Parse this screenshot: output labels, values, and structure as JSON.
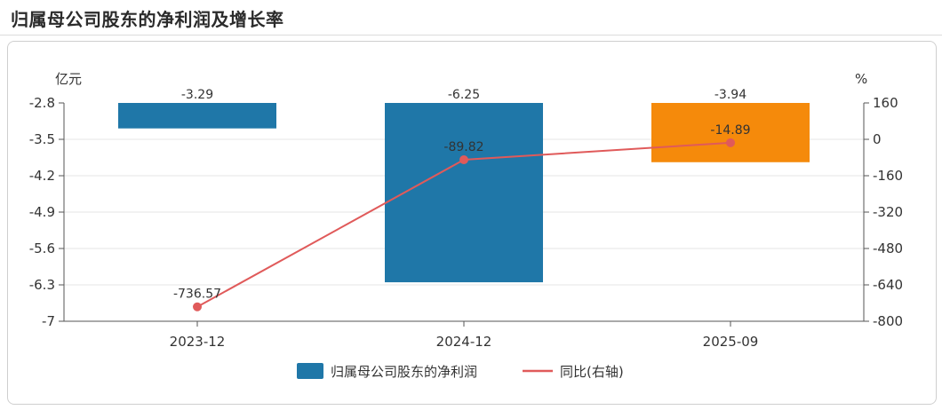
{
  "header": {
    "title": "归属母公司股东的净利润及增长率"
  },
  "chart_data": {
    "type": "bar",
    "categories": [
      "2023-12",
      "2024-12",
      "2025-09"
    ],
    "series": [
      {
        "name": "归属母公司股东的净利润",
        "type": "bar",
        "axis": "left",
        "values": [
          -3.29,
          -6.25,
          -3.94
        ],
        "labels": [
          "-3.29",
          "-6.25",
          "-3.94"
        ],
        "colors": [
          "#1f77a8",
          "#1f77a8",
          "#f58a0b"
        ]
      },
      {
        "name": "同比(右轴)",
        "type": "line",
        "axis": "right",
        "values": [
          -736.57,
          -89.82,
          -14.89
        ],
        "labels": [
          "-736.57",
          "-89.82",
          "-14.89"
        ],
        "color": "#e05a5a"
      }
    ],
    "left_axis": {
      "unit": "亿元",
      "ylim": [
        -7,
        -2.8
      ],
      "ticks": [
        -2.8,
        -3.5,
        -4.2,
        -4.9,
        -5.6,
        -6.3,
        -7
      ],
      "tick_labels": [
        "-2.8",
        "-3.5",
        "-4.2",
        "-4.9",
        "-5.6",
        "-6.3",
        "-7"
      ]
    },
    "right_axis": {
      "unit": "%",
      "ylim": [
        -800,
        160
      ],
      "ticks": [
        160,
        0,
        -160,
        -320,
        -480,
        -640,
        -800
      ],
      "tick_labels": [
        "160",
        "0",
        "-160",
        "-320",
        "-480",
        "-640",
        "-800"
      ]
    },
    "grid": true,
    "legend_position": "bottom-center",
    "colors": {
      "bar": "#1f77a8",
      "bar_highlight": "#f58a0b",
      "line": "#e05a5a",
      "grid": "#e6e6e6"
    }
  }
}
